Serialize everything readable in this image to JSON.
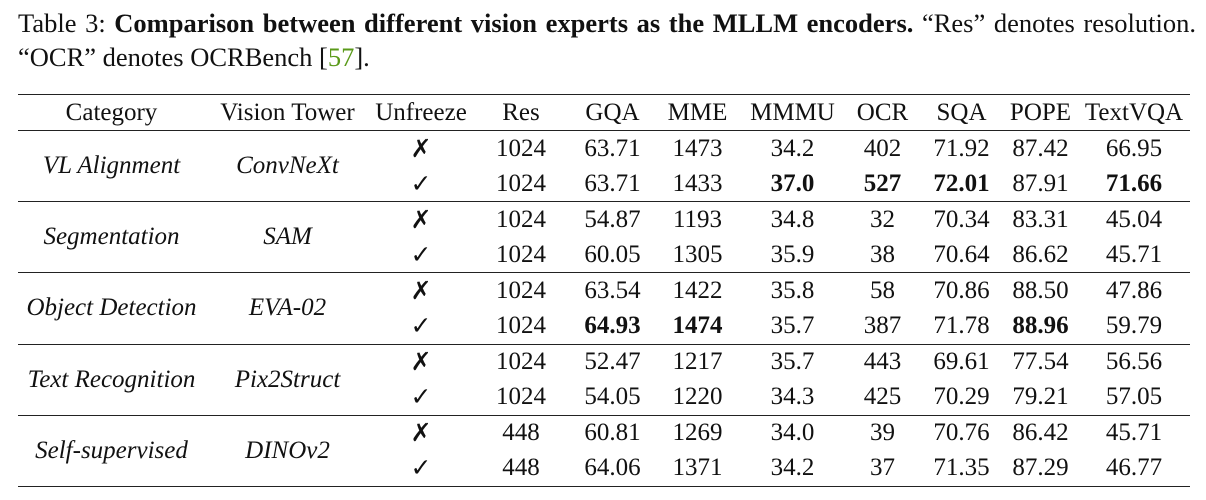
{
  "caption": {
    "label": "Table 3:",
    "title": "Comparison between different vision experts as the MLLM encoders.",
    "text": "“Res” denotes resolution. “OCR” denotes OCRBench [",
    "ref": "57",
    "end": "]."
  },
  "table": {
    "header": [
      "Category",
      "Vision Tower",
      "Unfreeze",
      "Res",
      "GQA",
      "MME",
      "MMMU",
      "OCR",
      "SQA",
      "POPE",
      "TextVQA"
    ],
    "groups": [
      {
        "category": "VL Alignment",
        "tower": "ConvNeXt",
        "rows": [
          {
            "cells": [
              "✗",
              "1024",
              "63.71",
              "1473",
              "34.2",
              "402",
              "71.92",
              "87.42",
              "66.95"
            ],
            "bold": []
          },
          {
            "cells": [
              "✓",
              "1024",
              "63.71",
              "1433",
              "37.0",
              "527",
              "72.01",
              "87.91",
              "71.66"
            ],
            "bold": [
              4,
              5,
              6,
              8
            ]
          }
        ]
      },
      {
        "category": "Segmentation",
        "tower": "SAM",
        "rows": [
          {
            "cells": [
              "✗",
              "1024",
              "54.87",
              "1193",
              "34.8",
              "32",
              "70.34",
              "83.31",
              "45.04"
            ],
            "bold": []
          },
          {
            "cells": [
              "✓",
              "1024",
              "60.05",
              "1305",
              "35.9",
              "38",
              "70.64",
              "86.62",
              "45.71"
            ],
            "bold": []
          }
        ]
      },
      {
        "category": "Object Detection",
        "tower": "EVA-02",
        "rows": [
          {
            "cells": [
              "✗",
              "1024",
              "63.54",
              "1422",
              "35.8",
              "58",
              "70.86",
              "88.50",
              "47.86"
            ],
            "bold": []
          },
          {
            "cells": [
              "✓",
              "1024",
              "64.93",
              "1474",
              "35.7",
              "387",
              "71.78",
              "88.96",
              "59.79"
            ],
            "bold": [
              2,
              3,
              7
            ]
          }
        ]
      },
      {
        "category": "Text Recognition",
        "tower": "Pix2Struct",
        "rows": [
          {
            "cells": [
              "✗",
              "1024",
              "52.47",
              "1217",
              "35.7",
              "443",
              "69.61",
              "77.54",
              "56.56"
            ],
            "bold": []
          },
          {
            "cells": [
              "✓",
              "1024",
              "54.05",
              "1220",
              "34.3",
              "425",
              "70.29",
              "79.21",
              "57.05"
            ],
            "bold": []
          }
        ]
      },
      {
        "category": "Self-supervised",
        "tower": "DINOv2",
        "rows": [
          {
            "cells": [
              "✗",
              "448",
              "60.81",
              "1269",
              "34.0",
              "39",
              "70.76",
              "86.42",
              "45.71"
            ],
            "bold": []
          },
          {
            "cells": [
              "✓",
              "448",
              "64.06",
              "1371",
              "34.2",
              "37",
              "71.35",
              "87.29",
              "46.77"
            ],
            "bold": []
          }
        ]
      }
    ]
  }
}
